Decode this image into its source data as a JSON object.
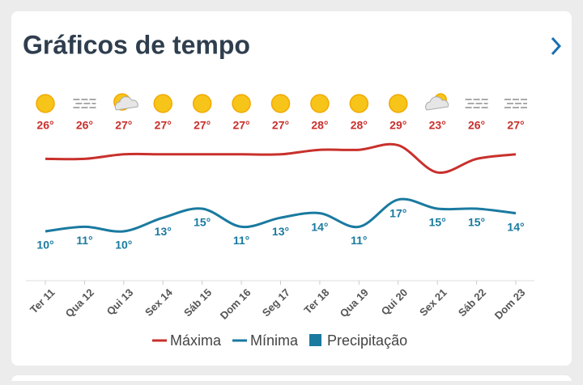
{
  "chart_data": {
    "type": "line",
    "title": "Gráficos de tempo",
    "categories": [
      "Ter 11",
      "Qua 12",
      "Qui 13",
      "Sex 14",
      "Sáb 15",
      "Dom 16",
      "Seg 17",
      "Ter 18",
      "Qua 19",
      "Qui 20",
      "Sex 21",
      "Sáb 22",
      "Dom 23"
    ],
    "conditions": [
      "sun",
      "fog",
      "partly-cloudy",
      "sun",
      "sun",
      "sun",
      "sun",
      "sun",
      "sun",
      "sun",
      "cloudy",
      "fog",
      "fog"
    ],
    "series": [
      {
        "name": "Máxima",
        "color": "#c9302c",
        "values": [
          26,
          26,
          27,
          27,
          27,
          27,
          27,
          28,
          28,
          29,
          23,
          26,
          27
        ],
        "value_labels": [
          "26°",
          "26°",
          "27°",
          "27°",
          "27°",
          "27°",
          "27°",
          "28°",
          "28°",
          "29°",
          "23°",
          "26°",
          "27°"
        ]
      },
      {
        "name": "Mínima",
        "color": "#1a7aa0",
        "values": [
          10,
          11,
          10,
          13,
          15,
          11,
          13,
          14,
          11,
          17,
          15,
          15,
          14
        ],
        "value_labels": [
          "10°",
          "11°",
          "10°",
          "13°",
          "15°",
          "11°",
          "13°",
          "14°",
          "11°",
          "17°",
          "15°",
          "15°",
          "14°"
        ]
      },
      {
        "name": "Precipitação",
        "color": "#1a7aa0",
        "values": [
          null,
          null,
          null,
          null,
          null,
          null,
          null,
          null,
          null,
          null,
          null,
          null,
          null
        ]
      }
    ]
  }
}
